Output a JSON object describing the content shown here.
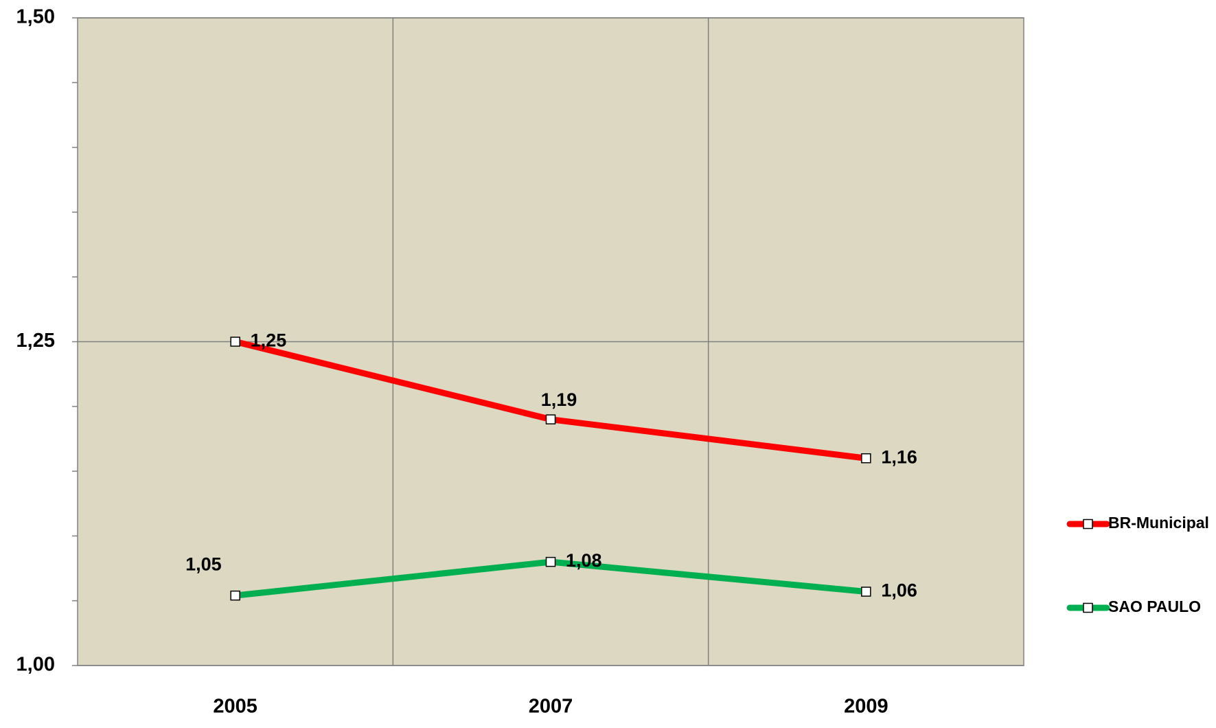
{
  "chart_data": {
    "type": "line",
    "categories": [
      "2005",
      "2007",
      "2009"
    ],
    "series": [
      {
        "name": "BR-Municipal",
        "color": "#ff0000",
        "values": [
          1.25,
          1.19,
          1.16
        ],
        "value_labels": [
          "1,25",
          "1,19",
          "1,16"
        ]
      },
      {
        "name": "SAO PAULO",
        "color": "#00b050",
        "values": [
          1.054,
          1.08,
          1.057
        ],
        "value_labels": [
          "1,05",
          "1,08",
          "1,06"
        ]
      }
    ],
    "ylim": [
      1,
      1.5
    ],
    "yticks": [
      {
        "value": 1,
        "label": "1,00"
      },
      {
        "value": 1.25,
        "label": "1,25"
      },
      {
        "value": 1.5,
        "label": "1,50"
      }
    ],
    "yticks_minor": [
      1.05,
      1.1,
      1.15,
      1.2,
      1.3,
      1.35,
      1.4,
      1.45
    ],
    "grid": true,
    "legend": "right"
  }
}
